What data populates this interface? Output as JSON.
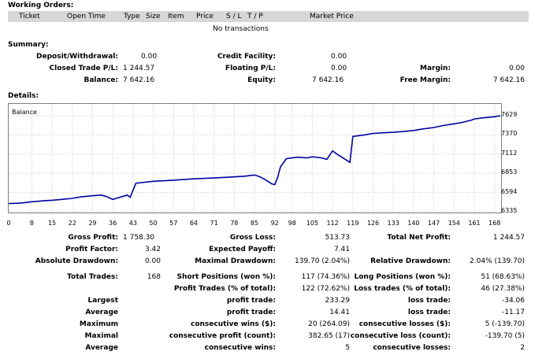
{
  "working_orders": {
    "title": "Working Orders:",
    "columns": [
      "Ticket",
      "Open Time",
      "Type",
      "Size",
      "Item",
      "Price",
      "S / L",
      "T / P",
      "Market Price"
    ],
    "empty_text": "No transactions"
  },
  "summary": {
    "title": "Summary:",
    "rows": [
      {
        "l1": "Deposit/Withdrawal:",
        "v1": "0.00",
        "l2": "Credit Facility:",
        "v2": "0.00",
        "l3": "",
        "v3": ""
      },
      {
        "l1": "Closed Trade P/L:",
        "v1": "1 244.57",
        "l2": "Floating P/L:",
        "v2": "0.00",
        "l3": "Margin:",
        "v3": "0.00"
      },
      {
        "l1": "Balance:",
        "v1": "7 642.16",
        "l2": "Equity:",
        "v2": "7 642.16",
        "l3": "Free Margin:",
        "v3": "7 642.16"
      }
    ]
  },
  "details": {
    "title": "Details:"
  },
  "chart_data": {
    "type": "line",
    "title": "Balance",
    "x_ticks": [
      0,
      8,
      15,
      22,
      29,
      36,
      43,
      50,
      57,
      64,
      71,
      78,
      85,
      92,
      98,
      105,
      112,
      119,
      126,
      133,
      140,
      147,
      154,
      161,
      168
    ],
    "y_ticks": [
      "7629",
      "7370",
      "7112",
      "6853",
      "6594",
      "6335"
    ],
    "ylim": [
      6335,
      7629
    ],
    "xlim": [
      0,
      170
    ],
    "series_color": "#0000a0",
    "series": [
      {
        "x": [
          0,
          3,
          5,
          8,
          10,
          12,
          15,
          18,
          22,
          25,
          29,
          32,
          34,
          36,
          38,
          41,
          42,
          44,
          50,
          57,
          64,
          71,
          75,
          78,
          82,
          85,
          87,
          89,
          91,
          92,
          93,
          94,
          96,
          98,
          100,
          103,
          105,
          108,
          110,
          112,
          114,
          116,
          118,
          119,
          123,
          126,
          130,
          133,
          136,
          140,
          143,
          147,
          150,
          154,
          157,
          160,
          161,
          164,
          168,
          170
        ],
        "y": [
          6445,
          6450,
          6455,
          6470,
          6475,
          6482,
          6490,
          6500,
          6515,
          6535,
          6550,
          6560,
          6538,
          6500,
          6525,
          6560,
          6530,
          6720,
          6745,
          6760,
          6778,
          6790,
          6798,
          6805,
          6815,
          6830,
          6805,
          6760,
          6710,
          6700,
          6800,
          6940,
          7050,
          7060,
          7070,
          7060,
          7075,
          7062,
          7040,
          7155,
          7100,
          7050,
          7000,
          7350,
          7370,
          7390,
          7400,
          7405,
          7415,
          7430,
          7450,
          7470,
          7495,
          7520,
          7540,
          7570,
          7585,
          7600,
          7615,
          7629
        ]
      }
    ]
  },
  "stats": {
    "gross_profit_l": "Gross Profit:",
    "gross_profit_v": "1 758.30",
    "gross_loss_l": "Gross Loss:",
    "gross_loss_v": "513.73",
    "net_profit_l": "Total Net Profit:",
    "net_profit_v": "1 244.57",
    "profit_factor_l": "Profit Factor:",
    "profit_factor_v": "3.42",
    "expected_payoff_l": "Expected Payoff:",
    "expected_payoff_v": "7.41",
    "abs_dd_l": "Absolute Drawdown:",
    "abs_dd_v": "0.00",
    "max_dd_l": "Maximal Drawdown:",
    "max_dd_v": "139.70 (2.04%)",
    "rel_dd_l": "Relative Drawdown:",
    "rel_dd_v": "2.04% (139.70)",
    "total_trades_l": "Total Trades:",
    "total_trades_v": "168",
    "short_l": "Short Positions (won %):",
    "short_v": "117 (74.36%)",
    "long_l": "Long Positions (won %):",
    "long_v": "51 (68.63%)",
    "profit_trades_l": "Profit Trades (% of total):",
    "profit_trades_v": "122 (72.62%)",
    "loss_trades_l": "Loss trades (% of total):",
    "loss_trades_v": "46 (27.38%)",
    "largest_l": "Largest",
    "largest_pt_l": "profit trade:",
    "largest_pt_v": "233.29",
    "largest_lt_l": "loss trade:",
    "largest_lt_v": "-34.06",
    "average_l": "Average",
    "average_pt_l": "profit trade:",
    "average_pt_v": "14.41",
    "average_lt_l": "loss trade:",
    "average_lt_v": "-11.17",
    "maximum_l": "Maximum",
    "max_cw_l": "consecutive wins ($):",
    "max_cw_v": "20 (264.09)",
    "max_cl_l": "consecutive losses ($):",
    "max_cl_v": "5 (-139.70)",
    "maximal_l": "Maximal",
    "mxl_cp_l": "consecutive profit (count):",
    "mxl_cp_v": "382.65 (17)",
    "mxl_cl_l": "consecutive loss (count):",
    "mxl_cl_v": "-139.70 (5)",
    "avg2_l": "Average",
    "avg_cw_l": "consecutive wins:",
    "avg_cw_v": "5",
    "avg_cl_l": "consecutive losses:",
    "avg_cl_v": "2"
  }
}
